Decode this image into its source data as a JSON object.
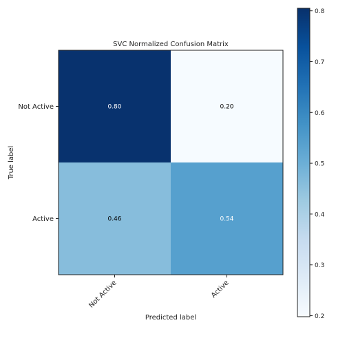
{
  "chart_data": {
    "type": "heatmap",
    "title": "SVC Normalized Confusion Matrix",
    "xlabel": "Predicted label",
    "ylabel": "True label",
    "x_categories": [
      "Not Active",
      "Active"
    ],
    "y_categories": [
      "Not Active",
      "Active"
    ],
    "values": [
      [
        0.8,
        0.2
      ],
      [
        0.46,
        0.54
      ]
    ],
    "cell_labels": [
      [
        "0.80",
        "0.20"
      ],
      [
        "0.46",
        "0.54"
      ]
    ],
    "colormap": "Blues",
    "colorbar": {
      "range": [
        0.198,
        0.805
      ],
      "ticks": [
        0.2,
        0.3,
        0.4,
        0.5,
        0.6,
        0.7,
        0.8
      ],
      "tick_labels": [
        "0.2",
        "0.3",
        "0.4",
        "0.5",
        "0.6",
        "0.7",
        "0.8"
      ]
    },
    "grid": false
  }
}
